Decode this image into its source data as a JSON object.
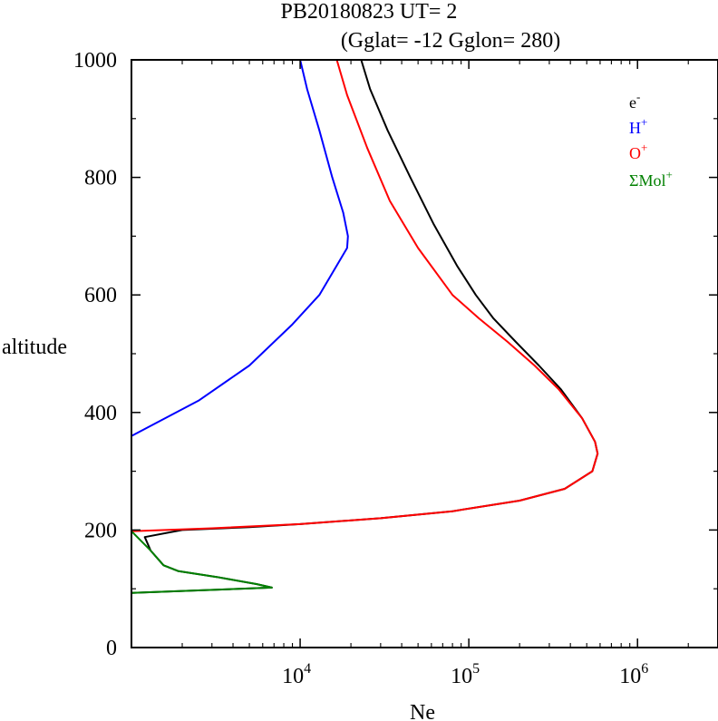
{
  "chart_data": {
    "type": "line",
    "title_line1": "PB20180823   UT=  2",
    "title_line2": "(Gglat= -12   Gglon=  280)",
    "xlabel": "Ne",
    "ylabel": "altitude",
    "x_scale": "log",
    "xlim": [
      1000,
      3000000
    ],
    "ylim": [
      0,
      1000
    ],
    "x_ticks": [
      {
        "value": 10000,
        "base": "10",
        "exp": "4"
      },
      {
        "value": 100000,
        "base": "10",
        "exp": "5"
      },
      {
        "value": 1000000,
        "base": "10",
        "exp": "6"
      }
    ],
    "y_ticks": [
      "0",
      "200",
      "400",
      "600",
      "800",
      "1000"
    ],
    "y_tick_values": [
      0,
      200,
      400,
      600,
      800,
      1000
    ],
    "grid": false,
    "legend_position": "top-right",
    "series": [
      {
        "name": "e",
        "superscript": "-",
        "color": "#000000",
        "points": [
          [
            1000,
            93
          ],
          [
            6800,
            102
          ],
          [
            5500,
            108
          ],
          [
            3200,
            120
          ],
          [
            1900,
            130
          ],
          [
            1550,
            140
          ],
          [
            1300,
            165
          ],
          [
            1200,
            188
          ],
          [
            2000,
            200
          ],
          [
            5000,
            205
          ],
          [
            10000,
            210
          ],
          [
            30000,
            220
          ],
          [
            80000,
            232
          ],
          [
            200000,
            250
          ],
          [
            370000,
            270
          ],
          [
            540000,
            300
          ],
          [
            580000,
            330
          ],
          [
            560000,
            350
          ],
          [
            470000,
            390
          ],
          [
            350000,
            440
          ],
          [
            260000,
            480
          ],
          [
            190000,
            520
          ],
          [
            140000,
            560
          ],
          [
            110000,
            600
          ],
          [
            85000,
            650
          ],
          [
            62000,
            720
          ],
          [
            45000,
            800
          ],
          [
            33000,
            880
          ],
          [
            26000,
            950
          ],
          [
            23000,
            1000
          ]
        ]
      },
      {
        "name": "H",
        "superscript": "+",
        "color": "#0000ff",
        "points": [
          [
            1000,
            360
          ],
          [
            2500,
            420
          ],
          [
            5000,
            480
          ],
          [
            9000,
            550
          ],
          [
            13000,
            600
          ],
          [
            16500,
            650
          ],
          [
            19000,
            680
          ],
          [
            19200,
            700
          ],
          [
            18000,
            740
          ],
          [
            15500,
            800
          ],
          [
            13000,
            880
          ],
          [
            11000,
            950
          ],
          [
            10000,
            1000
          ]
        ]
      },
      {
        "name": "O",
        "superscript": "+",
        "color": "#ff0000",
        "points": [
          [
            1000,
            198
          ],
          [
            3000,
            203
          ],
          [
            10000,
            210
          ],
          [
            30000,
            220
          ],
          [
            80000,
            232
          ],
          [
            200000,
            250
          ],
          [
            370000,
            270
          ],
          [
            540000,
            300
          ],
          [
            580000,
            330
          ],
          [
            560000,
            350
          ],
          [
            470000,
            390
          ],
          [
            340000,
            440
          ],
          [
            245000,
            480
          ],
          [
            170000,
            520
          ],
          [
            115000,
            560
          ],
          [
            80000,
            600
          ],
          [
            50000,
            680
          ],
          [
            34000,
            760
          ],
          [
            25000,
            850
          ],
          [
            19000,
            940
          ],
          [
            16500,
            1000
          ]
        ]
      },
      {
        "name": "ΣMol",
        "superscript": "+",
        "color": "#008000",
        "points": [
          [
            1000,
            93
          ],
          [
            6800,
            102
          ],
          [
            5500,
            108
          ],
          [
            3200,
            120
          ],
          [
            1900,
            130
          ],
          [
            1550,
            140
          ],
          [
            1300,
            165
          ],
          [
            1000,
            198
          ]
        ]
      }
    ]
  }
}
